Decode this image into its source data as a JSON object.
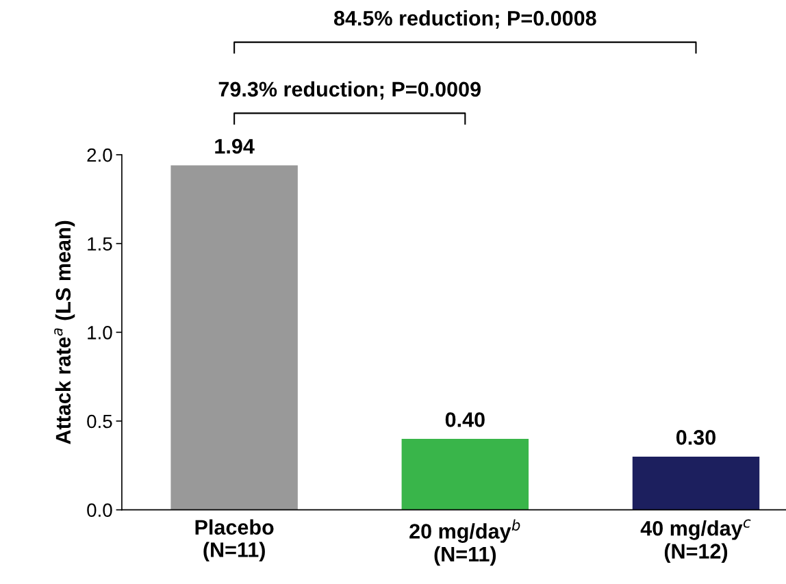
{
  "chart_data": {
    "type": "bar",
    "categories": [
      "Placebo\n(N=11)",
      "20 mg/day$^{b}$\n(N=11)",
      "40 mg/day$^{c}$\n(N=12)"
    ],
    "values": [
      1.94,
      0.4,
      0.3
    ],
    "colors": [
      "#999999",
      "#39b54a",
      "#1c1f5e"
    ],
    "value_labels": [
      "1.94",
      "0.40",
      "0.30"
    ],
    "ylabel": "Attack rate$^{a}$ (LS mean)",
    "ylim": [
      0,
      2.0
    ],
    "yticks": [
      {
        "value": 0,
        "label": "0.0"
      },
      {
        "value": 0.5,
        "label": "0.5"
      },
      {
        "value": 1.0,
        "label": "1.0"
      },
      {
        "value": 1.5,
        "label": "1.5"
      },
      {
        "value": 2.0,
        "label": "2.0"
      }
    ],
    "annotations": [
      "79.3% reduction; P=0.0009",
      "84.5% reduction; P=0.0008"
    ],
    "grid": false,
    "legend": false
  }
}
